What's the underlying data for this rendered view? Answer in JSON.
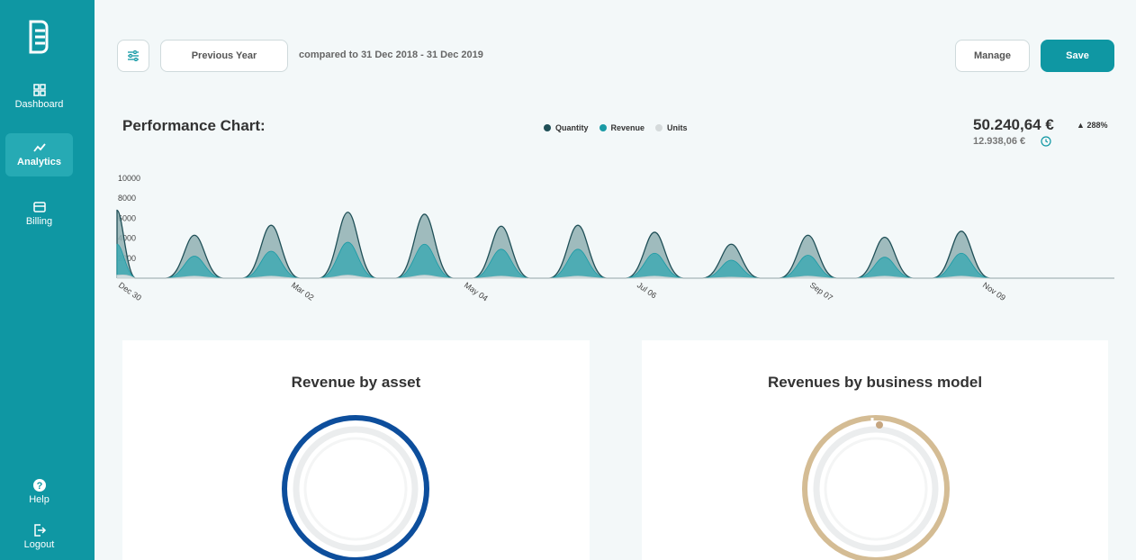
{
  "sidebar": {
    "items": [
      {
        "label": "Dashboard",
        "icon": "dashboard-icon",
        "active": false
      },
      {
        "label": "Analytics",
        "icon": "analytics-icon",
        "active": true
      },
      {
        "label": "Billing",
        "icon": "billing-icon",
        "active": false
      }
    ],
    "help_label": "Help",
    "logout_label": "Logout"
  },
  "toolbar": {
    "period_label": "Previous Year",
    "compare_text": "compared to 31 Dec 2018 - 31 Dec 2019",
    "manage_label": "Manage",
    "save_label": "Save"
  },
  "performance": {
    "title": "Performance Chart:",
    "legend": [
      {
        "name": "Quantity",
        "color": "#1f4f57"
      },
      {
        "name": "Revenue",
        "color": "#1a9aa5"
      },
      {
        "name": "Units",
        "color": "#d5dadb"
      }
    ],
    "total": "50.240,64 €",
    "previous": "12.938,06 €",
    "change": "288%"
  },
  "chart_data": {
    "type": "area",
    "yticks": [
      "10000",
      "8000",
      "6000",
      "4000",
      "2000"
    ],
    "xticks": [
      "Dec 30",
      "Mar 02",
      "May 04",
      "Jul 06",
      "Sep 07",
      "Nov 09"
    ],
    "ylim": [
      0,
      10000
    ],
    "series": [
      {
        "name": "Quantity",
        "values": [
          6800,
          4300,
          5300,
          6600,
          6400,
          5200,
          5300,
          4600,
          3400,
          4300,
          4100,
          4700
        ]
      },
      {
        "name": "Revenue",
        "values": [
          3400,
          2200,
          2700,
          3600,
          3400,
          2900,
          2900,
          2500,
          1800,
          2300,
          2100,
          2500
        ]
      },
      {
        "name": "Units",
        "values": [
          300,
          200,
          200,
          300,
          300,
          200,
          200,
          200,
          100,
          200,
          200,
          200
        ]
      }
    ]
  },
  "cards": {
    "asset_title": "Revenue by asset",
    "business_title": "Revenues by business model",
    "asset_color": "#0d4e9c",
    "business_color": "#d4bc94"
  }
}
